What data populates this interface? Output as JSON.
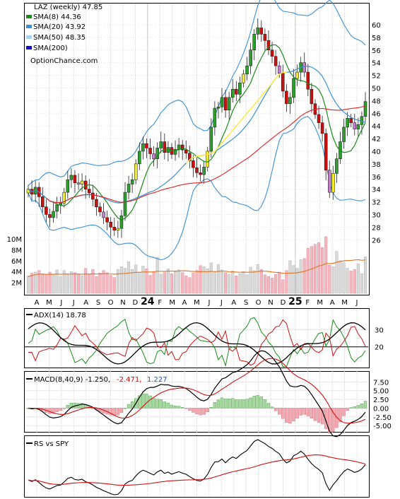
{
  "chart_data": {
    "type": "candlestick",
    "ticker_title": "LAZ (weekly) 47.85",
    "watermark": "OptionChance.com",
    "legend": [
      {
        "label": "SMA(8) 44.36",
        "color": "#1a8a1a"
      },
      {
        "label": "SMA(20) 43.92",
        "color": "#3a8fd6"
      },
      {
        "label": "SMA(50) 48.35",
        "color": "#a9d2f0"
      },
      {
        "label": "SMA(200)",
        "color": "#1010d0"
      }
    ],
    "x_labels": [
      {
        "text": "A",
        "bold": false
      },
      {
        "text": "M",
        "bold": false
      },
      {
        "text": "J",
        "bold": false
      },
      {
        "text": "J",
        "bold": false
      },
      {
        "text": "A",
        "bold": false
      },
      {
        "text": "S",
        "bold": false
      },
      {
        "text": "O",
        "bold": false
      },
      {
        "text": "N",
        "bold": false
      },
      {
        "text": "D",
        "bold": false
      },
      {
        "text": "24",
        "bold": true
      },
      {
        "text": "F",
        "bold": false
      },
      {
        "text": "M",
        "bold": false
      },
      {
        "text": "A",
        "bold": false
      },
      {
        "text": "M",
        "bold": false
      },
      {
        "text": "J",
        "bold": false
      },
      {
        "text": "J",
        "bold": false
      },
      {
        "text": "A",
        "bold": false
      },
      {
        "text": "S",
        "bold": false
      },
      {
        "text": "O",
        "bold": false
      },
      {
        "text": "N",
        "bold": false
      },
      {
        "text": "D",
        "bold": false
      },
      {
        "text": "25",
        "bold": true
      },
      {
        "text": "F",
        "bold": false
      },
      {
        "text": "M",
        "bold": false
      },
      {
        "text": "A",
        "bold": false
      },
      {
        "text": "M",
        "bold": false
      },
      {
        "text": "J",
        "bold": false
      }
    ],
    "price_axis": {
      "ticks": [
        "60",
        "58",
        "56",
        "54",
        "52",
        "50",
        "48",
        "46",
        "44",
        "42",
        "40",
        "38",
        "36",
        "34",
        "32",
        "30",
        "28",
        "26"
      ],
      "ylim": [
        25,
        61.5
      ]
    },
    "volume_axis": {
      "ticks": [
        "10M",
        "8M",
        "6M",
        "4M",
        "2M"
      ],
      "ylim": [
        0,
        11
      ]
    },
    "weekly_close": [
      34.0,
      33.2,
      34.3,
      32.8,
      31.2,
      30.0,
      29.5,
      30.5,
      31.5,
      31.8,
      33.5,
      35.5,
      36.2,
      35.0,
      34.8,
      35.3,
      34.0,
      33.4,
      32.4,
      31.2,
      30.4,
      29.5,
      28.8,
      28.0,
      27.5,
      27.8,
      29.8,
      33.5,
      34.8,
      35.5,
      38.0,
      40.0,
      41.2,
      40.5,
      39.6,
      38.8,
      40.5,
      41.5,
      39.8,
      40.6,
      39.5,
      40.3,
      41.0,
      40.2,
      39.7,
      38.5,
      37.4,
      36.6,
      36.3,
      37.5,
      40.0,
      43.8,
      46.8,
      47.0,
      48.5,
      46.5,
      48.5,
      49.8,
      49.0,
      50.8,
      52.2,
      53.5,
      56.0,
      58.5,
      59.5,
      58.5,
      57.5,
      56.0,
      55.0,
      53.5,
      52.3,
      49.5,
      47.5,
      48.5,
      51.5,
      52.5,
      54.0,
      52.5,
      49.8,
      47.5,
      45.8,
      44.5,
      42.8,
      37.0,
      33.5,
      36.5,
      38.8,
      41.5,
      43.8,
      45.2,
      44.5,
      43.5,
      44.2,
      45.5,
      47.85
    ],
    "volume_m": [
      3.2,
      3.7,
      3.9,
      4.2,
      3.6,
      3.4,
      3.9,
      3.5,
      4.3,
      3.1,
      4.2,
      3.6,
      4.0,
      3.8,
      3.5,
      3.2,
      4.6,
      3.5,
      4.4,
      3.1,
      3.7,
      4.2,
      3.8,
      3.3,
      2.9,
      4.4,
      4.9,
      4.6,
      5.8,
      4.4,
      5.2,
      3.9,
      5.0,
      4.5,
      3.3,
      3.9,
      6.6,
      3.5,
      3.8,
      4.5,
      3.6,
      4.0,
      4.3,
      3.8,
      3.2,
      2.9,
      3.7,
      4.2,
      5.1,
      4.9,
      4.5,
      5.6,
      4.0,
      5.3,
      4.3,
      3.8,
      3.5,
      4.1,
      3.2,
      3.6,
      4.0,
      3.4,
      4.8,
      4.2,
      5.3,
      4.4,
      3.4,
      3.1,
      2.8,
      3.5,
      3.9,
      2.5,
      4.2,
      6.0,
      5.1,
      4.6,
      6.2,
      6.4,
      8.3,
      8.6,
      9.0,
      9.3,
      8.4,
      10.4,
      5.2,
      4.9,
      7.7,
      6.0,
      5.6,
      4.6,
      4.1,
      4.4,
      5.4,
      3.6,
      6.7
    ],
    "adx_panel": {
      "title": "ADX(14) 18.78",
      "ticks": [
        "30",
        "20"
      ]
    },
    "macd_panel": {
      "title": "MACD(8,40,9) -1.250,",
      "value_red": "-2.471,",
      "value_blue": "1.227",
      "ticks": [
        "7.50",
        "5.00",
        "2.50",
        "0.00",
        "-2.50",
        "-5.00"
      ]
    },
    "rs_panel": {
      "title": "RS vs SPY"
    }
  }
}
